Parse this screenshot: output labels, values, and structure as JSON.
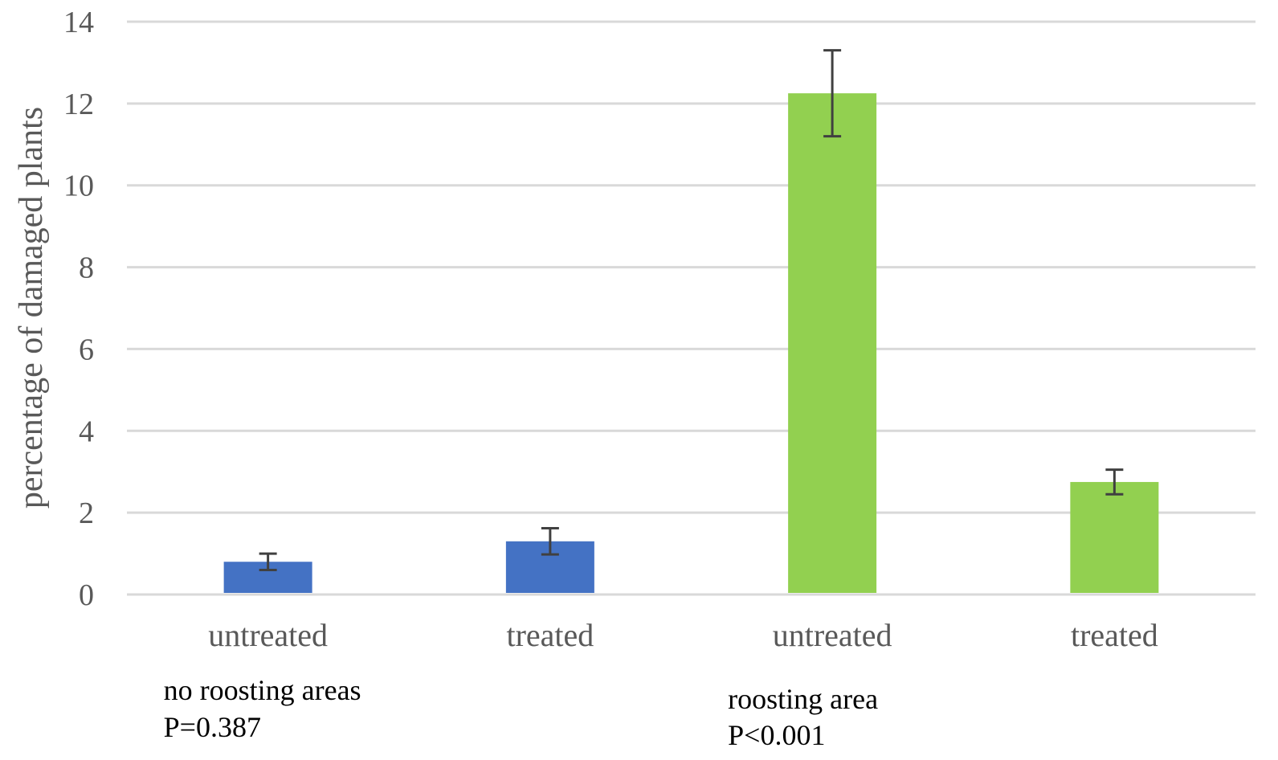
{
  "chart_data": {
    "type": "bar",
    "title": "",
    "xlabel": "",
    "ylabel": "percentage of damaged plants",
    "ylim": [
      0,
      14
    ],
    "yticks": [
      0,
      2,
      4,
      6,
      8,
      10,
      12,
      14
    ],
    "grid": true,
    "categories": [
      "untreated",
      "treated",
      "untreated",
      "treated"
    ],
    "values": [
      0.8,
      1.3,
      12.25,
      2.75
    ],
    "errors": [
      0.2,
      0.32,
      1.05,
      0.3
    ],
    "colors": [
      "#4472c4",
      "#4472c4",
      "#92d050",
      "#92d050"
    ],
    "groups": [
      {
        "label": "no roosting areas",
        "p_value": "P=0.387",
        "bars": [
          0,
          1
        ]
      },
      {
        "label": "roosting area",
        "p_value": "P<0.001",
        "bars": [
          2,
          3
        ]
      }
    ]
  }
}
